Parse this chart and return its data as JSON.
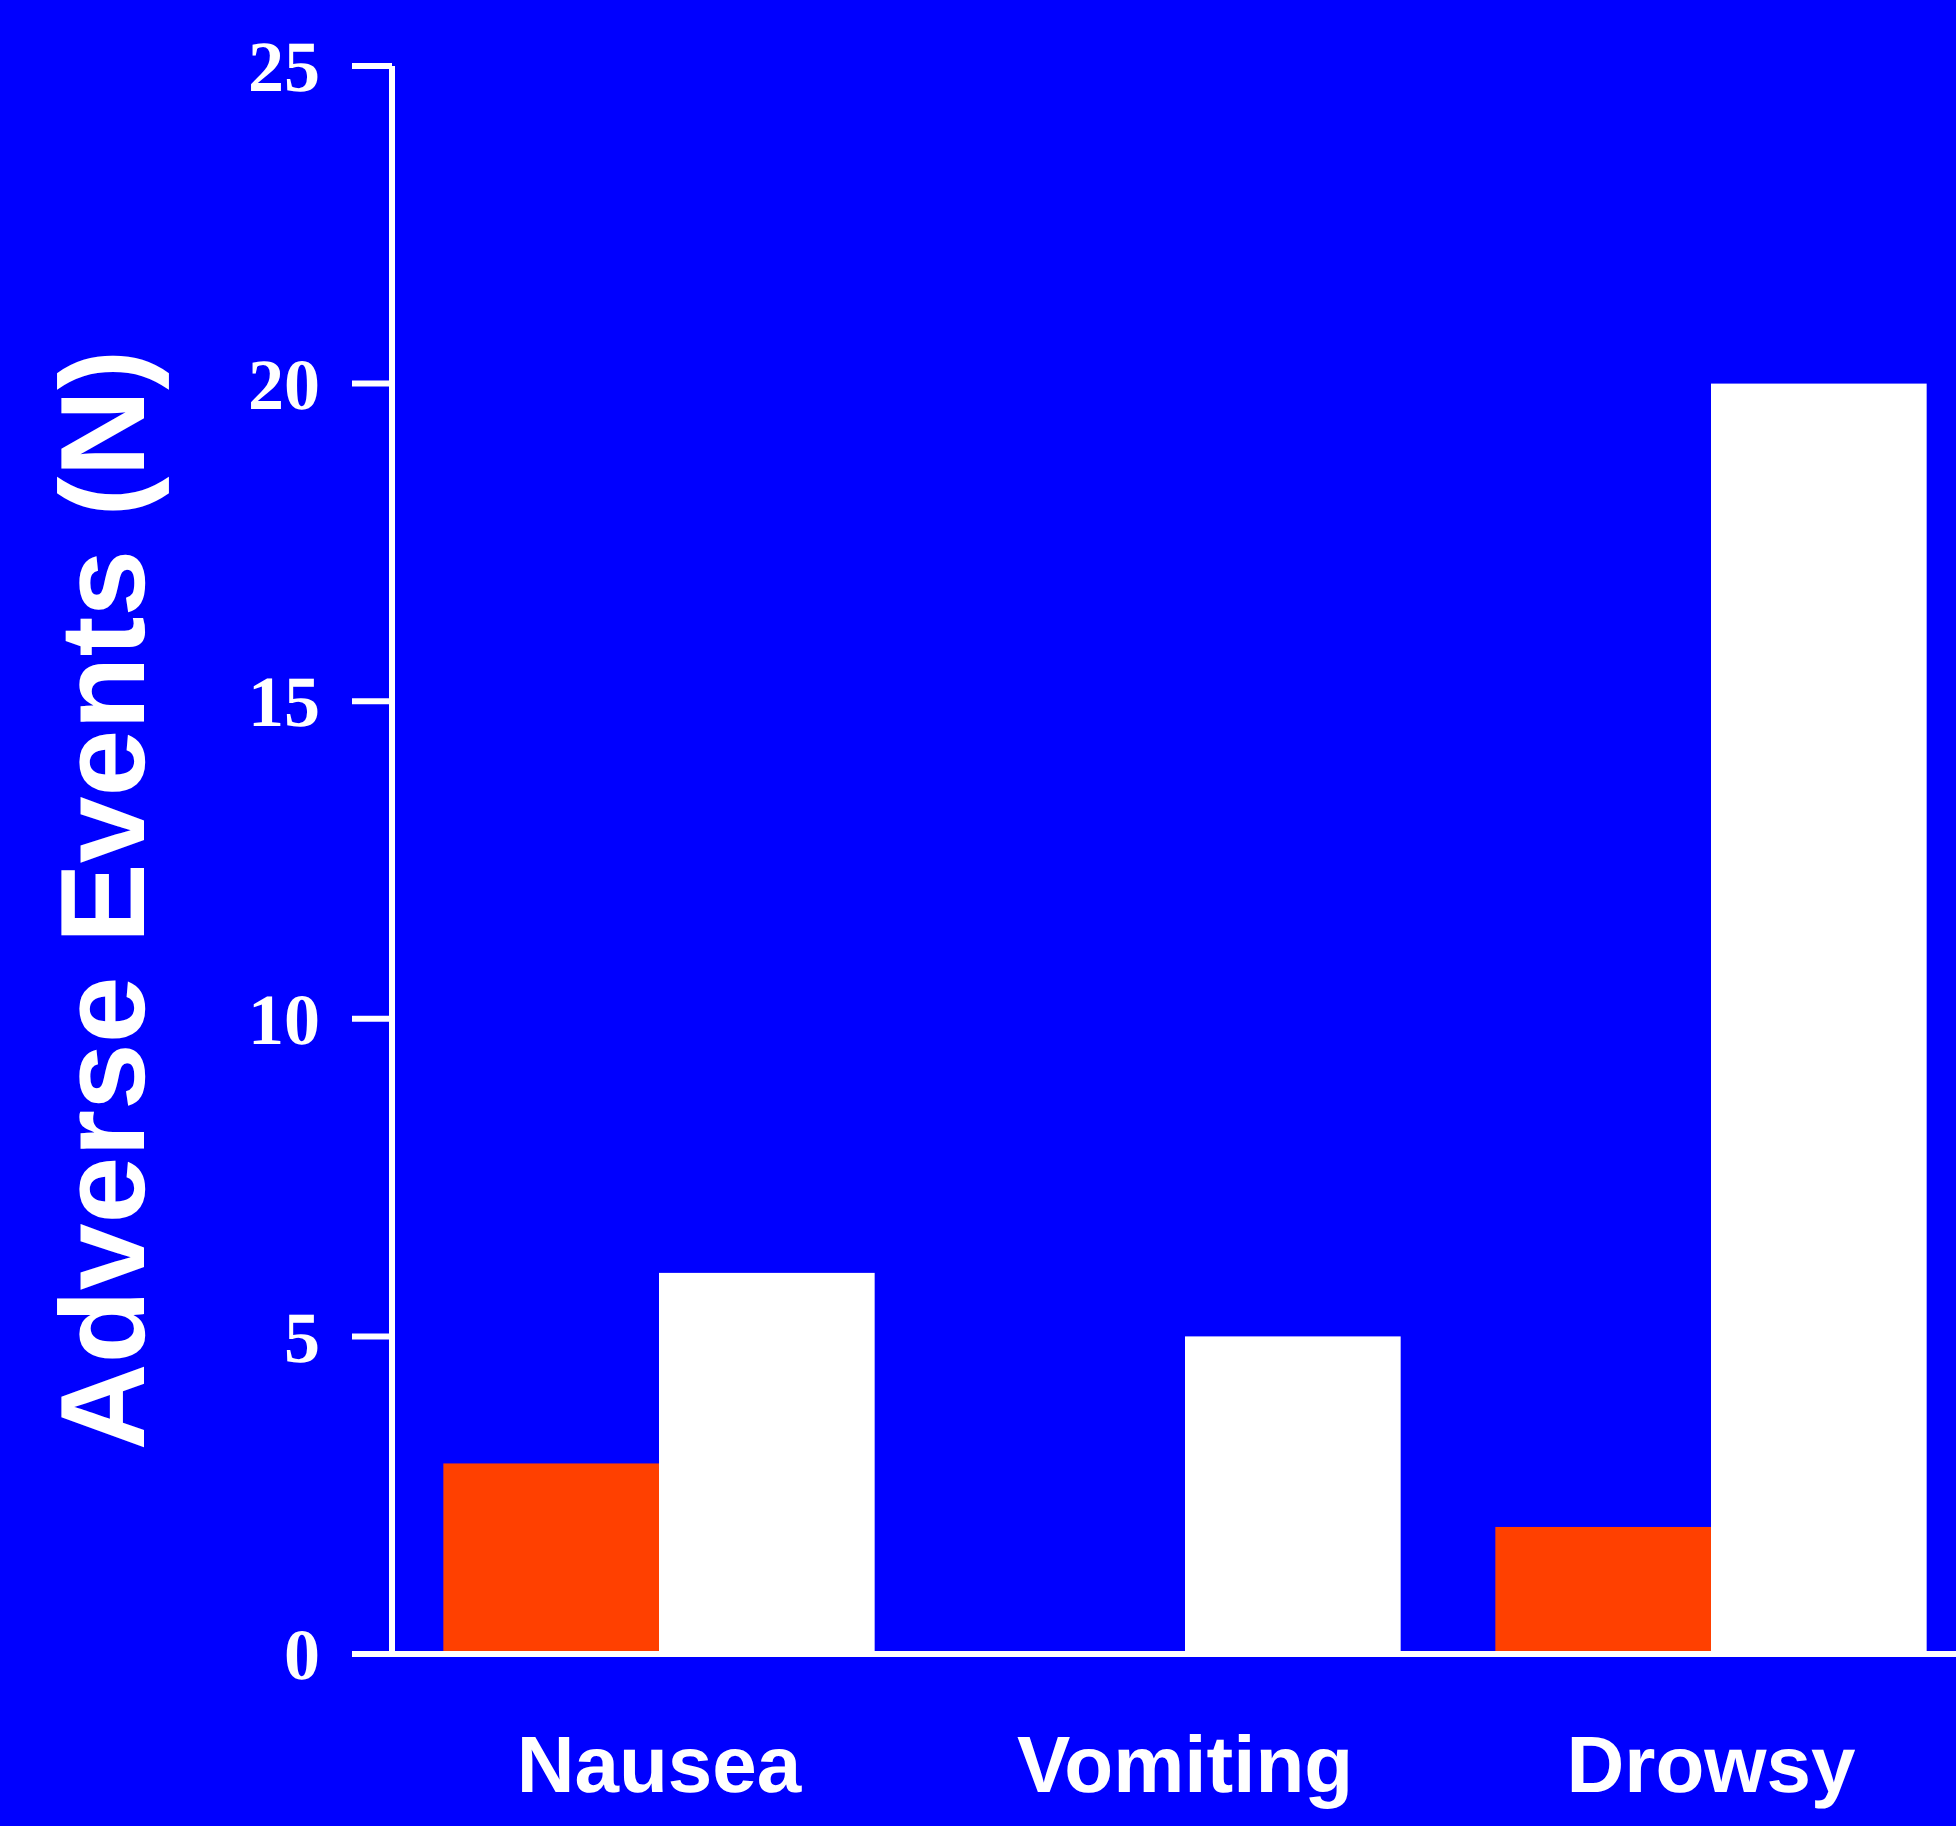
{
  "chart_data": {
    "type": "bar",
    "ylabel": "Adverse Events (N)",
    "categories": [
      "Nausea",
      "Vomiting",
      "Drowsy"
    ],
    "series": [
      {
        "color": "#ff4000",
        "values": [
          3,
          0,
          2
        ]
      },
      {
        "color": "#ffffff",
        "values": [
          6,
          5,
          20
        ]
      }
    ],
    "ylim": [
      0,
      25
    ],
    "yticks": [
      0,
      5,
      10,
      15,
      20,
      25
    ]
  }
}
